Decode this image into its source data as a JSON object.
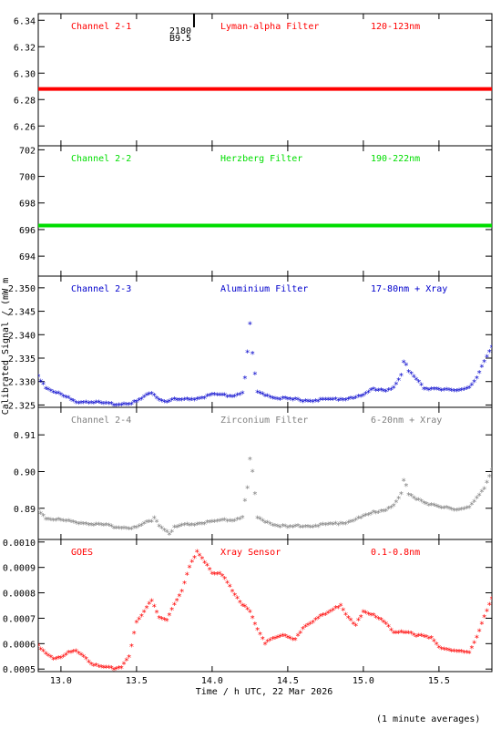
{
  "xlabel": "Time / h UTC, 22 Mar 2026",
  "ylabel": "Calibrated Signal / (mW m",
  "footnote": "(1 minute averages)",
  "x_range": [
    12.85,
    15.85
  ],
  "x_ticks": [
    "13.0",
    "13.5",
    "14.0",
    "14.5",
    "15.0",
    "15.5"
  ],
  "x_tick_values": [
    13.0,
    13.5,
    14.0,
    14.5,
    15.0,
    15.5
  ],
  "flare_marker": {
    "time": 13.88,
    "label1": "2180",
    "label2": "B9.5"
  },
  "colors": {
    "red": "#ff0000",
    "green": "#00dd00",
    "blue": "#0000cc",
    "gray": "#808080",
    "axis": "#000000"
  },
  "chart_data": [
    {
      "type": "scatter",
      "channel": "Channel 2-1",
      "filter": "Lyman-alpha Filter",
      "band": "120-123nm",
      "color": "#ff0000",
      "ylim": [
        6.245,
        6.345
      ],
      "y_ticks": [
        "6.26",
        "6.28",
        "6.30",
        "6.32",
        "6.34"
      ],
      "y_tick_values": [
        6.26,
        6.28,
        6.3,
        6.32,
        6.34
      ],
      "x": [
        12.85,
        15.85
      ],
      "y": [
        6.288,
        6.288
      ],
      "mode": "dense-line"
    },
    {
      "type": "scatter",
      "channel": "Channel 2-2",
      "filter": "Herzberg Filter",
      "band": "190-222nm",
      "color": "#00dd00",
      "ylim": [
        692.5,
        702.3
      ],
      "y_ticks": [
        "694",
        "696",
        "698",
        "700",
        "702"
      ],
      "y_tick_values": [
        694,
        696,
        698,
        700,
        702
      ],
      "x": [
        12.85,
        15.85
      ],
      "y": [
        696.3,
        696.3
      ],
      "mode": "dense-line"
    },
    {
      "type": "scatter",
      "channel": "Channel 2-3",
      "filter": "Aluminium Filter",
      "band": "17-80nm + Xray",
      "color": "#0000cc",
      "ylim": [
        2.3245,
        2.3525
      ],
      "y_ticks": [
        "2.325",
        "2.330",
        "2.335",
        "2.340",
        "2.345",
        "2.350"
      ],
      "y_tick_values": [
        2.325,
        2.33,
        2.335,
        2.34,
        2.345,
        2.35
      ],
      "x": [
        12.85,
        12.9,
        13.0,
        13.1,
        13.2,
        13.3,
        13.4,
        13.5,
        13.55,
        13.6,
        13.65,
        13.7,
        13.75,
        13.8,
        13.85,
        13.9,
        13.95,
        14.0,
        14.05,
        14.1,
        14.15,
        14.2,
        14.22,
        14.24,
        14.25,
        14.27,
        14.3,
        14.4,
        14.5,
        14.6,
        14.7,
        14.8,
        14.9,
        15.0,
        15.05,
        15.1,
        15.15,
        15.2,
        15.25,
        15.27,
        15.3,
        15.35,
        15.4,
        15.5,
        15.6,
        15.7,
        15.75,
        15.8,
        15.85
      ],
      "y": [
        2.331,
        2.3285,
        2.327,
        2.3255,
        2.3255,
        2.325,
        2.325,
        2.3255,
        2.3265,
        2.3275,
        2.326,
        2.3255,
        2.326,
        2.3258,
        2.326,
        2.3262,
        2.3265,
        2.327,
        2.3268,
        2.3268,
        2.3268,
        2.3275,
        2.331,
        2.3385,
        2.342,
        2.3345,
        2.3275,
        2.3265,
        2.326,
        2.3258,
        2.3258,
        2.326,
        2.3262,
        2.3268,
        2.328,
        2.3282,
        2.328,
        2.3285,
        2.331,
        2.3345,
        2.332,
        2.3305,
        2.3285,
        2.328,
        2.328,
        2.3285,
        2.3305,
        2.334,
        2.3375
      ],
      "mode": "markers"
    },
    {
      "type": "scatter",
      "channel": "Channel 2-4",
      "filter": "Zirconium Filter",
      "band": "6-20nm + Xray",
      "color": "#808080",
      "ylim": [
        0.8815,
        0.9175
      ],
      "y_ticks": [
        "0.89",
        "0.90",
        "0.91"
      ],
      "y_tick_values": [
        0.89,
        0.9,
        0.91
      ],
      "x": [
        12.85,
        12.9,
        13.0,
        13.1,
        13.2,
        13.3,
        13.4,
        13.5,
        13.55,
        13.6,
        13.62,
        13.65,
        13.7,
        13.72,
        13.75,
        13.8,
        13.9,
        14.0,
        14.1,
        14.15,
        14.2,
        14.22,
        14.24,
        14.25,
        14.27,
        14.3,
        14.4,
        14.5,
        14.6,
        14.7,
        14.8,
        14.9,
        15.0,
        15.1,
        15.15,
        15.2,
        15.25,
        15.27,
        15.3,
        15.4,
        15.5,
        15.6,
        15.7,
        15.75,
        15.8,
        15.85
      ],
      "y": [
        0.8895,
        0.887,
        0.8865,
        0.886,
        0.8855,
        0.885,
        0.8845,
        0.8845,
        0.8855,
        0.8865,
        0.8875,
        0.885,
        0.8835,
        0.8825,
        0.8845,
        0.885,
        0.8855,
        0.886,
        0.8865,
        0.8865,
        0.8875,
        0.8925,
        0.8965,
        0.903,
        0.899,
        0.887,
        0.8855,
        0.8845,
        0.885,
        0.885,
        0.8855,
        0.886,
        0.8875,
        0.889,
        0.8895,
        0.8905,
        0.8935,
        0.898,
        0.8935,
        0.8915,
        0.89,
        0.8895,
        0.89,
        0.8925,
        0.895,
        0.9005
      ],
      "mode": "markers"
    },
    {
      "type": "scatter",
      "channel": "GOES",
      "filter": "Xray Sensor",
      "band": "0.1-0.8nm",
      "color": "#ff0000",
      "ylim": [
        0.00049,
        0.00101
      ],
      "y_ticks": [
        "0.0005",
        "0.0006",
        "0.0007",
        "0.0008",
        "0.0009",
        "0.0010"
      ],
      "y_tick_values": [
        0.0005,
        0.0006,
        0.0007,
        0.0008,
        0.0009,
        0.001
      ],
      "x": [
        12.85,
        12.9,
        12.95,
        13.0,
        13.05,
        13.1,
        13.15,
        13.2,
        13.25,
        13.3,
        13.35,
        13.4,
        13.45,
        13.5,
        13.55,
        13.6,
        13.65,
        13.7,
        13.75,
        13.8,
        13.85,
        13.9,
        13.95,
        14.0,
        14.05,
        14.1,
        14.15,
        14.2,
        14.25,
        14.3,
        14.35,
        14.4,
        14.45,
        14.5,
        14.55,
        14.6,
        14.65,
        14.7,
        14.75,
        14.8,
        14.85,
        14.9,
        14.95,
        15.0,
        15.05,
        15.1,
        15.15,
        15.2,
        15.25,
        15.3,
        15.35,
        15.4,
        15.45,
        15.5,
        15.55,
        15.6,
        15.65,
        15.7,
        15.75,
        15.8,
        15.85
      ],
      "y": [
        0.00059,
        0.00056,
        0.00054,
        0.00054,
        0.00056,
        0.00057,
        0.00055,
        0.00052,
        0.000505,
        0.0005,
        0.0005,
        0.000505,
        0.00055,
        0.00068,
        0.00072,
        0.00077,
        0.0007,
        0.00069,
        0.00075,
        0.0008,
        0.0009,
        0.00096,
        0.00092,
        0.00087,
        0.00087,
        0.00084,
        0.00079,
        0.00075,
        0.00072,
        0.00065,
        0.0006,
        0.00062,
        0.00063,
        0.00062,
        0.00061,
        0.00066,
        0.00068,
        0.0007,
        0.00071,
        0.00073,
        0.00075,
        0.0007,
        0.00067,
        0.00072,
        0.00071,
        0.0007,
        0.00068,
        0.00064,
        0.00064,
        0.00064,
        0.00063,
        0.00063,
        0.00062,
        0.00058,
        0.00057,
        0.00057,
        0.00057,
        0.00056,
        0.00062,
        0.0007,
        0.00078
      ],
      "mode": "markers"
    }
  ]
}
